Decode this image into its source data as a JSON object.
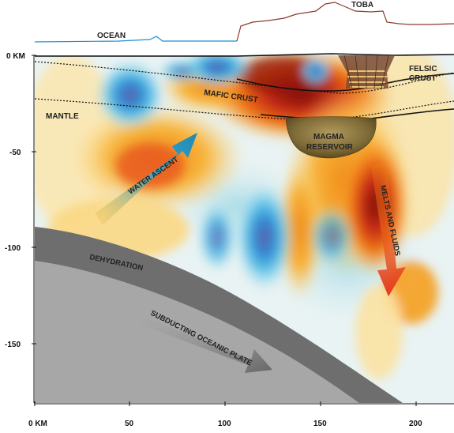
{
  "figure": {
    "labels": {
      "ocean": "OCEAN",
      "toba": "TOBA",
      "felsic_crust": [
        "FELSIC",
        "CRUST"
      ],
      "mafic_crust": "MAFIC CRUST",
      "mantle": "MANTLE",
      "magma_reservoir": [
        "MAGMA",
        "RESERVOIR"
      ],
      "water_ascent": "WATER ASCENT",
      "melts_and_fluids": "MELTS AND FLUIDS",
      "dehydration": "DEHYDRATION",
      "subducting_plate": "SUBDUCTING OCEANIC PLATE"
    },
    "depth_axis": {
      "ticks": [
        "0 KM",
        "-50",
        "-100",
        "-150"
      ]
    },
    "distance_axis": {
      "ticks": [
        "0 KM",
        "50",
        "100",
        "150",
        "200"
      ]
    },
    "colors": {
      "ocean_line": "#1f8fd1",
      "land_line": "#8a3b2a",
      "plate": "#8c8c8c",
      "plate_top": "#6e6e6e",
      "magma": "#7a6a3a",
      "arrow_blue": "#2a9bc4",
      "arrow_red": "#e2412c"
    }
  }
}
